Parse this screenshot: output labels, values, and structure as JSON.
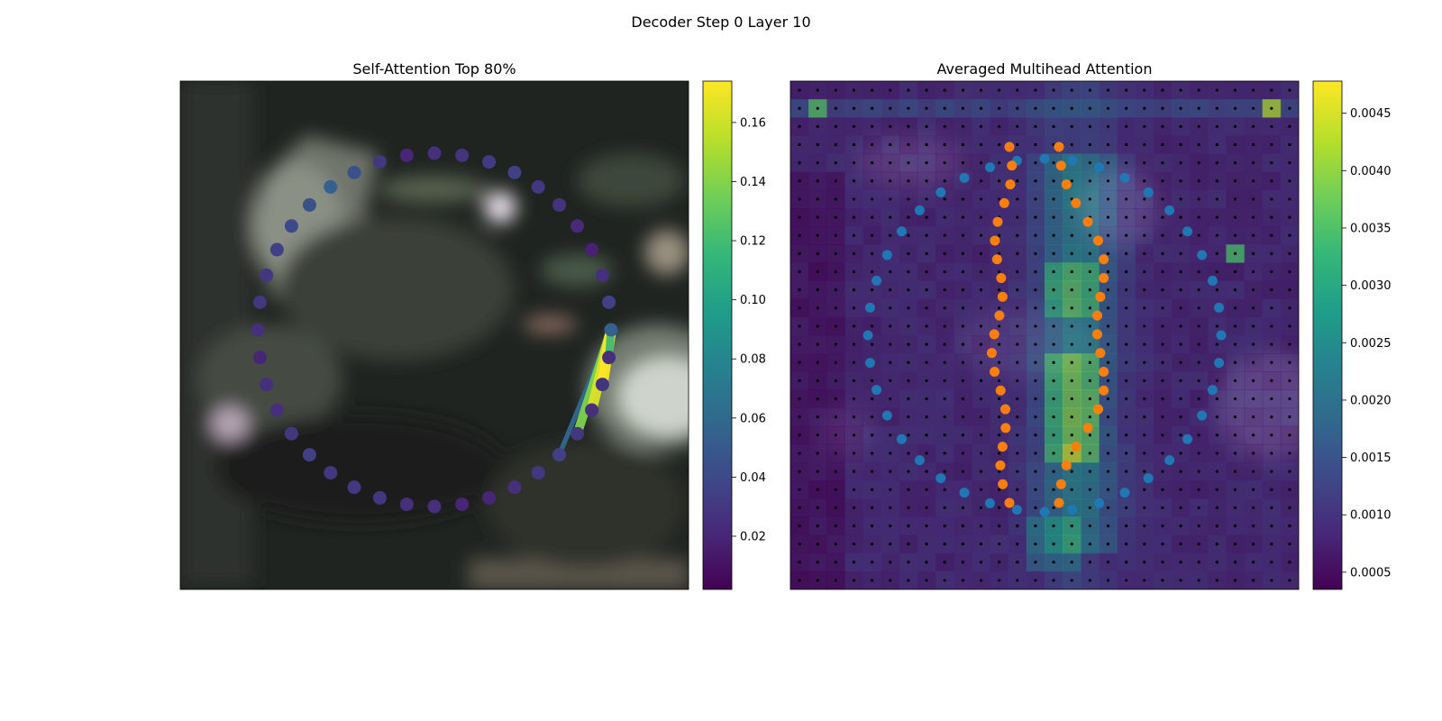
{
  "figure": {
    "suptitle": "Decoder Step 0 Layer 10"
  },
  "colors": {
    "viridis": [
      "#440154",
      "#482878",
      "#3e4989",
      "#31688e",
      "#26828e",
      "#1f9e89",
      "#35b779",
      "#6ece58",
      "#b5de2b",
      "#fde725"
    ],
    "blue_points": "#1f77b4",
    "orange_points": "#ff7f0e",
    "grid_points": "#000000"
  },
  "chart_data": [
    {
      "type": "scatter",
      "title": "Self-Attention Top 80%",
      "background": "blurred dark photograph",
      "colorbar": {
        "range": [
          0.002,
          0.174
        ],
        "ticks": [
          "0.02",
          "0.04",
          "0.06",
          "0.08",
          "0.10",
          "0.12",
          "0.14",
          "0.16"
        ],
        "tick_values": [
          0.02,
          0.04,
          0.06,
          0.08,
          0.1,
          0.12,
          0.14,
          0.16
        ]
      },
      "ring_points": {
        "count": 40,
        "query_index": 0,
        "weights": [
          0.055,
          0.035,
          0.025,
          0.018,
          0.022,
          0.028,
          0.03,
          0.035,
          0.032,
          0.028,
          0.025,
          0.02,
          0.03,
          0.045,
          0.055,
          0.045,
          0.04,
          0.035,
          0.03,
          0.03,
          0.025,
          0.02,
          0.025,
          0.025,
          0.03,
          0.035,
          0.03,
          0.03,
          0.03,
          0.025,
          0.025,
          0.02,
          0.02,
          0.025,
          0.03,
          0.035,
          0.03,
          0.025,
          0.028,
          0.025
        ]
      },
      "attention_links": [
        {
          "target": 35,
          "weight": 0.06
        },
        {
          "target": 36,
          "weight": 0.14
        },
        {
          "target": 37,
          "weight": 0.165
        },
        {
          "target": 38,
          "weight": 0.174
        },
        {
          "target": 39,
          "weight": 0.12
        }
      ]
    },
    {
      "type": "heatmap",
      "title": "Averaged Multihead Attention",
      "grid_size": 28,
      "colorbar": {
        "range": [
          0.00035,
          0.00478
        ],
        "ticks": [
          "0.0005",
          "0.0010",
          "0.0015",
          "0.0020",
          "0.0025",
          "0.0030",
          "0.0035",
          "0.0040",
          "0.0045"
        ],
        "tick_values": [
          0.0005,
          0.001,
          0.0015,
          0.002,
          0.0025,
          0.003,
          0.0035,
          0.004,
          0.0045
        ]
      },
      "blue_points": {
        "count": 40
      },
      "orange_points": {
        "count": 40
      }
    }
  ]
}
